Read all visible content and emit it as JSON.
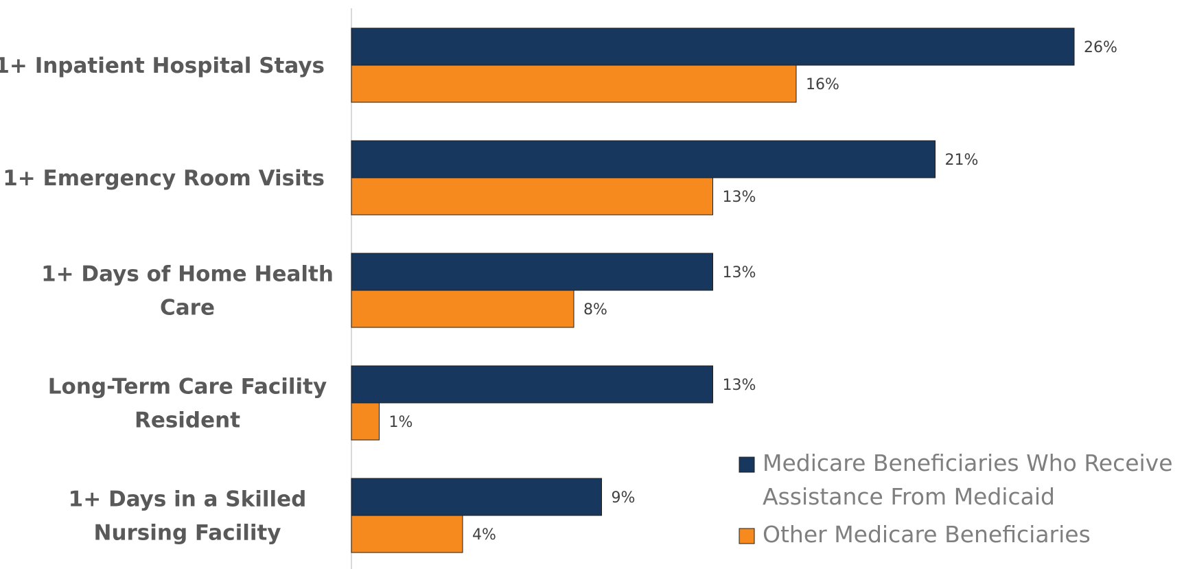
{
  "colors": {
    "medicaid": "#17375e",
    "other": "#f68a1e",
    "axis": "#d9d9d9"
  },
  "chart_data": {
    "type": "bar",
    "orientation": "horizontal",
    "categories": [
      [
        "1+ Inpatient Hospital Stays"
      ],
      [
        "1+ Emergency Room Visits"
      ],
      [
        "1+ Days of Home Health",
        "Care"
      ],
      [
        "Long-Term Care Facility",
        "Resident"
      ],
      [
        "1+ Days in a Skilled",
        "Nursing Facility"
      ]
    ],
    "series": [
      {
        "name": "Medicare Beneficiaries Who Receive Assistance From Medicaid",
        "name_lines": [
          "Medicare Beneficiaries Who Receive",
          "Assistance From Medicaid"
        ],
        "values": [
          26,
          21,
          13,
          13,
          9
        ],
        "labels": [
          "26%",
          "21%",
          "13%",
          "13%",
          "9%"
        ]
      },
      {
        "name": "Other Medicare Beneficiaries",
        "name_lines": [
          "Other Medicare Beneficiaries"
        ],
        "values": [
          16,
          13,
          8,
          1,
          4
        ],
        "labels": [
          "16%",
          "13%",
          "8%",
          "1%",
          "4%"
        ]
      }
    ],
    "xlim": [
      0,
      26
    ],
    "grid": false,
    "legend_position": "bottom-right"
  }
}
